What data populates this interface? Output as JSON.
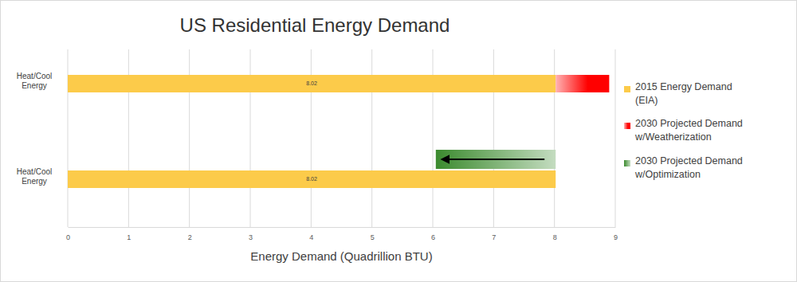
{
  "chart_data": {
    "type": "bar",
    "title": "US Residential Energy Demand",
    "xlabel": "Energy Demand (Quadrillion BTU)",
    "orientation": "horizontal",
    "categories": [
      "Heat/Cool Energy",
      "Heat/Cool Energy"
    ],
    "series": [
      {
        "name": "2015 Energy Demand (EIA)",
        "color": "#fccb4a",
        "values": [
          8.02,
          8.02
        ],
        "data_labels": true
      },
      {
        "name": "2030 Projected Demand w/Weatherization",
        "type": "bar",
        "color": "#ff0000",
        "values": [
          8.9,
          null
        ]
      },
      {
        "name": "2030 Projected Demand w/Optimization",
        "type": "arrow",
        "color": "#3b8a2e",
        "values": [
          null,
          6.05
        ]
      }
    ],
    "xlim": [
      0,
      9
    ],
    "xticks": [
      0,
      1,
      2,
      3,
      4,
      5,
      6,
      7,
      8,
      9
    ],
    "grid": true,
    "legend": "right"
  }
}
